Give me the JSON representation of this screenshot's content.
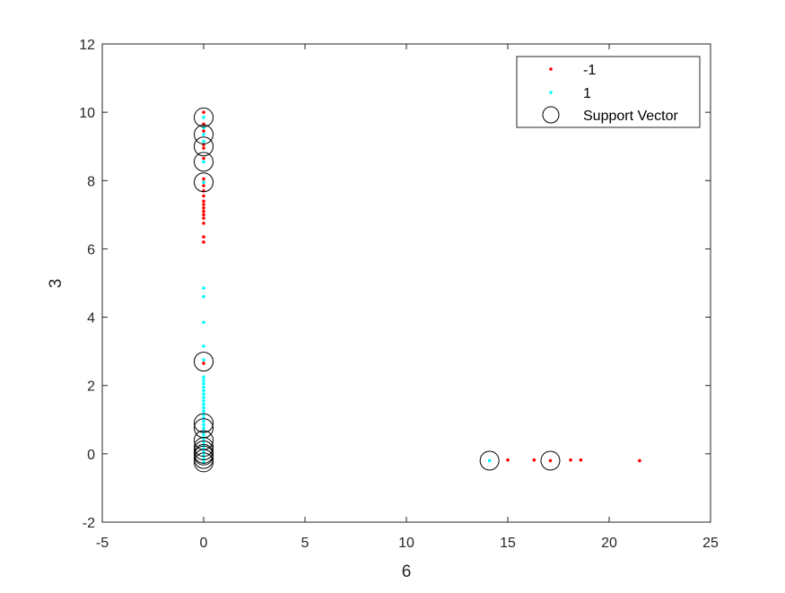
{
  "chart_data": {
    "type": "scatter",
    "xlabel": "6",
    "ylabel": "3",
    "xlim": [
      -5,
      25
    ],
    "ylim": [
      -2,
      12
    ],
    "xticks": [
      -5,
      0,
      5,
      10,
      15,
      20,
      25
    ],
    "yticks": [
      -2,
      0,
      2,
      4,
      6,
      8,
      10,
      12
    ],
    "grid": false,
    "legend_position": "top-right",
    "series": [
      {
        "name": "-1",
        "color": "#ff0000",
        "marker": "dot",
        "points": [
          [
            0,
            10.0
          ],
          [
            0,
            9.65
          ],
          [
            0,
            9.45
          ],
          [
            0,
            9.05
          ],
          [
            0,
            8.95
          ],
          [
            0,
            8.65
          ],
          [
            0,
            8.05
          ],
          [
            0,
            7.95
          ],
          [
            0,
            7.85
          ],
          [
            0,
            7.7
          ],
          [
            0,
            7.55
          ],
          [
            0,
            7.4
          ],
          [
            0,
            7.3
          ],
          [
            0,
            7.2
          ],
          [
            0,
            7.1
          ],
          [
            0,
            7.0
          ],
          [
            0,
            6.9
          ],
          [
            0,
            6.75
          ],
          [
            0,
            6.35
          ],
          [
            0,
            6.2
          ],
          [
            0,
            2.65
          ],
          [
            15.0,
            -0.18
          ],
          [
            16.3,
            -0.18
          ],
          [
            17.1,
            -0.2
          ],
          [
            18.1,
            -0.18
          ],
          [
            18.6,
            -0.18
          ],
          [
            21.5,
            -0.2
          ]
        ]
      },
      {
        "name": "1",
        "color": "#00ffff",
        "marker": "dot",
        "points": [
          [
            0,
            9.85
          ],
          [
            0,
            9.55
          ],
          [
            0,
            9.35
          ],
          [
            0,
            9.15
          ],
          [
            0,
            8.55
          ],
          [
            0,
            7.95
          ],
          [
            0,
            4.85
          ],
          [
            0,
            4.6
          ],
          [
            0,
            3.85
          ],
          [
            0,
            3.15
          ],
          [
            0,
            2.75
          ],
          [
            0,
            2.25
          ],
          [
            0,
            2.15
          ],
          [
            0,
            2.05
          ],
          [
            0,
            1.95
          ],
          [
            0,
            1.85
          ],
          [
            0,
            1.75
          ],
          [
            0,
            1.65
          ],
          [
            0,
            1.55
          ],
          [
            0,
            1.45
          ],
          [
            0,
            1.35
          ],
          [
            0,
            1.25
          ],
          [
            0,
            1.15
          ],
          [
            0,
            1.05
          ],
          [
            0,
            0.95
          ],
          [
            0,
            0.85
          ],
          [
            0,
            0.75
          ],
          [
            0,
            0.65
          ],
          [
            0,
            0.55
          ],
          [
            0,
            0.45
          ],
          [
            0,
            0.35
          ],
          [
            0,
            0.25
          ],
          [
            0,
            0.15
          ],
          [
            0,
            0.05
          ],
          [
            0,
            -0.05
          ],
          [
            0,
            -0.15
          ],
          [
            0,
            -0.25
          ],
          [
            14.1,
            -0.2
          ]
        ]
      },
      {
        "name": "Support Vector",
        "color": "#000000",
        "marker": "circle",
        "points": [
          [
            0,
            9.85
          ],
          [
            0,
            9.35
          ],
          [
            0,
            9.0
          ],
          [
            0,
            8.55
          ],
          [
            0,
            7.95
          ],
          [
            0,
            2.7
          ],
          [
            0,
            0.9
          ],
          [
            0,
            0.75
          ],
          [
            0,
            0.4
          ],
          [
            0,
            0.2
          ],
          [
            0,
            0.1
          ],
          [
            0,
            0.0
          ],
          [
            0,
            -0.05
          ],
          [
            0,
            -0.15
          ],
          [
            0,
            -0.25
          ],
          [
            14.1,
            -0.2
          ],
          [
            17.1,
            -0.2
          ]
        ]
      }
    ]
  }
}
